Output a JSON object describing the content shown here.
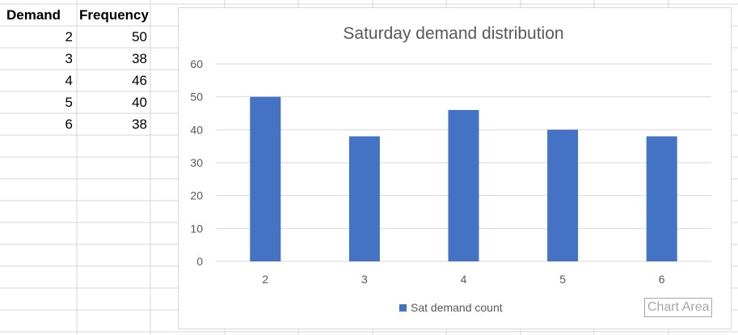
{
  "sheet": {
    "headers": [
      "Demand",
      "Frequency"
    ],
    "rows": [
      {
        "demand": "2",
        "frequency": "50"
      },
      {
        "demand": "3",
        "frequency": "38"
      },
      {
        "demand": "4",
        "frequency": "46"
      },
      {
        "demand": "5",
        "frequency": "40"
      },
      {
        "demand": "6",
        "frequency": "38"
      }
    ]
  },
  "chart_data": {
    "type": "bar",
    "title": "Saturday demand distribution",
    "categories": [
      "2",
      "3",
      "4",
      "5",
      "6"
    ],
    "series": [
      {
        "name": "Sat demand count",
        "values": [
          50,
          38,
          46,
          40,
          38
        ],
        "color": "#4472c4"
      }
    ],
    "ylim": [
      0,
      60
    ],
    "yticks": [
      0,
      10,
      20,
      30,
      40,
      50,
      60
    ],
    "grid": true,
    "legend": "bottom"
  },
  "tooltip": "Chart Area"
}
